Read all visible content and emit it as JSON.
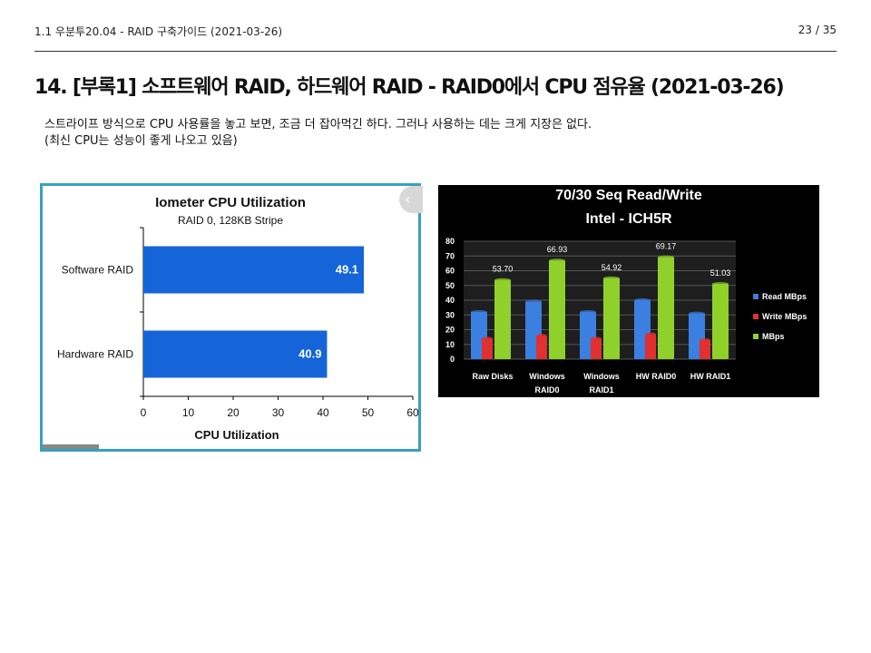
{
  "header": {
    "left": "1.1 우분투20.04 - RAID 구축가이드 (2021-03-26)",
    "right": "23 / 35"
  },
  "title": "14. [부록1] 소프트웨어 RAID, 하드웨어 RAID - RAID0에서 CPU 점유율 (2021-03-26)",
  "body": {
    "line1": "스트라이프 방식으로 CPU 사용률을 놓고 보면, 조금 더 잡아먹긴 하다. 그러나 사용하는 데는 크게 지장은 없다.",
    "line2": "(최신 CPU는 성능이 좋게 나오고 있음)"
  },
  "nav": {
    "prev_icon": "chevron-left-icon"
  },
  "colors": {
    "bar_blue": "#1565d8",
    "frame": "#3a9fbf"
  },
  "chart_data": [
    {
      "type": "bar",
      "orientation": "horizontal",
      "title": "Iometer CPU Utilization",
      "subtitle": "RAID 0, 128KB Stripe",
      "xlabel": "CPU Utilization",
      "ylabel": "",
      "categories": [
        "Software RAID",
        "Hardware RAID"
      ],
      "values": [
        49.1,
        40.9
      ],
      "value_labels": [
        "49.1",
        "40.9"
      ],
      "xlim": [
        0,
        60
      ],
      "xticks": [
        "0",
        "10",
        "20",
        "30",
        "40",
        "50",
        "60"
      ],
      "grid": false
    },
    {
      "type": "bar",
      "title": "70/30 Seq Read/Write",
      "subtitle": "Intel - ICH5R",
      "categories": [
        [
          "Raw Disks"
        ],
        [
          "Windows",
          "RAID0"
        ],
        [
          "Windows",
          "RAID1"
        ],
        [
          "HW RAID0"
        ],
        [
          "HW RAID1"
        ]
      ],
      "series": [
        {
          "name": "Read MBps",
          "color": "#3b7fe0",
          "values": [
            32,
            39,
            32,
            40,
            31
          ]
        },
        {
          "name": "Write MBps",
          "color": "#e03030",
          "values": [
            14,
            16,
            14,
            17,
            13
          ]
        },
        {
          "name": "MBps",
          "color": "#8fd12a",
          "values": [
            53.7,
            66.93,
            54.92,
            69.17,
            51.03
          ]
        }
      ],
      "value_labels": [
        "53.70",
        "66.93",
        "54.92",
        "69.17",
        "51.03"
      ],
      "ylim": [
        0,
        80
      ],
      "yticks": [
        "0",
        "10",
        "20",
        "30",
        "40",
        "50",
        "60",
        "70",
        "80"
      ],
      "legend": "right",
      "grid": true
    }
  ]
}
